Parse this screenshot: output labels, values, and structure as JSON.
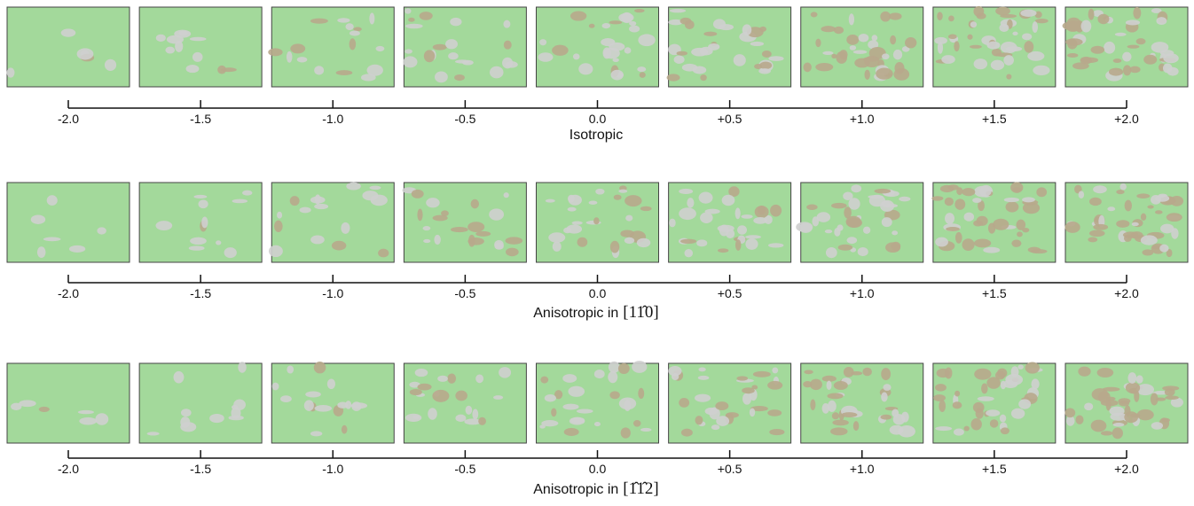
{
  "rows": [
    {
      "caption": "Isotropic",
      "ticks": [
        {
          "value": -2,
          "label": "-2.0"
        },
        {
          "value": -1.5,
          "label": "-1.5"
        },
        {
          "value": -1,
          "label": "-1.0"
        },
        {
          "value": -0.5,
          "label": "-0.5"
        },
        {
          "value": 0,
          "label": "0.0"
        },
        {
          "value": 0.5,
          "label": "+0.5"
        },
        {
          "value": 1,
          "label": "+1.0"
        },
        {
          "value": 1.5,
          "label": "+1.5"
        },
        {
          "value": 2,
          "label": "+2.0"
        }
      ]
    },
    {
      "caption": "Anisotropic in",
      "direction": "[11̂0]",
      "ticks": [
        {
          "value": -2,
          "label": "-2.0"
        },
        {
          "value": -1.5,
          "label": "-1.5"
        },
        {
          "value": -1,
          "label": "-1.0"
        },
        {
          "value": -0.5,
          "label": "-0.5"
        },
        {
          "value": 0,
          "label": "0.0"
        },
        {
          "value": 0.5,
          "label": "+0.5"
        },
        {
          "value": 1,
          "label": "+1.0"
        },
        {
          "value": 1.5,
          "label": "+1.5"
        },
        {
          "value": 2,
          "label": "+2.0"
        }
      ]
    },
    {
      "caption": "Anisotropic in",
      "direction": "[1̂1̂2]",
      "ticks": [
        {
          "value": -2,
          "label": "-2.0"
        },
        {
          "value": -1.5,
          "label": "-1.5"
        },
        {
          "value": -1,
          "label": "-1.0"
        },
        {
          "value": -0.5,
          "label": "-0.5"
        },
        {
          "value": 0,
          "label": "0.0"
        },
        {
          "value": 0.5,
          "label": "+0.5"
        },
        {
          "value": 1,
          "label": "+1.0"
        },
        {
          "value": 1.5,
          "label": "+1.5"
        },
        {
          "value": 2,
          "label": "+2.0"
        }
      ]
    }
  ]
}
